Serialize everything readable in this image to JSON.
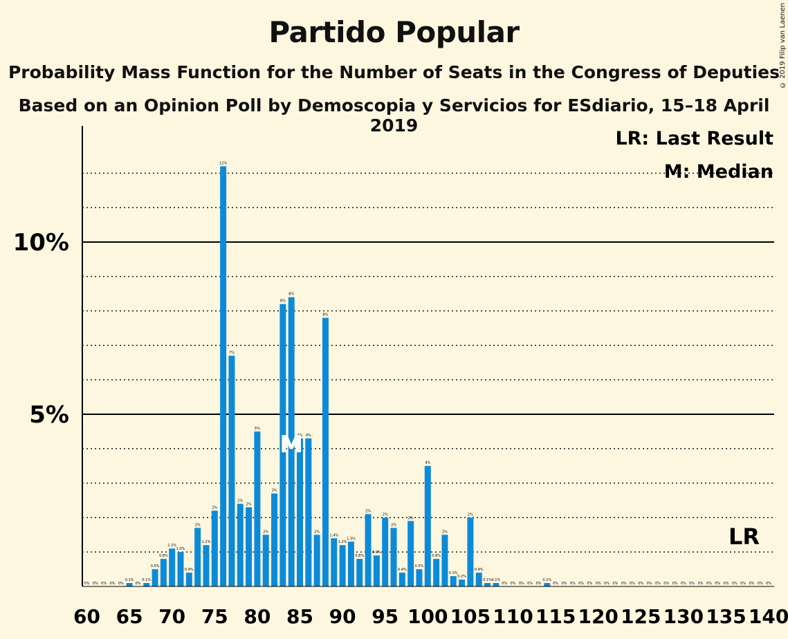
{
  "title": "Partido Popular",
  "subtitle": "Probability Mass Function for the Number of Seats in the Congress of Deputies",
  "subtitle2": "Based on an Opinion Poll by Demoscopia y Servicios for ESdiario, 15–18 April 2019",
  "copyright": "© 2019 Filip van Laenen",
  "legend": {
    "lr": "LR: Last Result",
    "m": "M: Median"
  },
  "markers": {
    "median_label": "M",
    "median_seat": 84,
    "lr_label": "LR",
    "lr_value": 1.0
  },
  "colors": {
    "bar": "#0c8ad8",
    "background": "#fef7e0"
  },
  "chart_data": {
    "type": "bar",
    "title": "Partido Popular",
    "xlabel": "",
    "ylabel": "",
    "xlim": [
      60,
      140
    ],
    "ylim": [
      0,
      13.3
    ],
    "yticks": [
      {
        "v": 5,
        "label": "5%"
      },
      {
        "v": 10,
        "label": "10%"
      }
    ],
    "xticks": [
      60,
      65,
      70,
      75,
      80,
      85,
      90,
      95,
      100,
      105,
      110,
      115,
      120,
      125,
      130,
      135,
      140
    ],
    "grid": "dotted every 1%, solid at 5% and 10%",
    "x": [
      60,
      61,
      62,
      63,
      64,
      65,
      66,
      67,
      68,
      69,
      70,
      71,
      72,
      73,
      74,
      75,
      76,
      77,
      78,
      79,
      80,
      81,
      82,
      83,
      84,
      85,
      86,
      87,
      88,
      89,
      90,
      91,
      92,
      93,
      94,
      95,
      96,
      97,
      98,
      99,
      100,
      101,
      102,
      103,
      104,
      105,
      106,
      107,
      108,
      109,
      110,
      111,
      112,
      113,
      114,
      115,
      116,
      117,
      118,
      119,
      120,
      121,
      122,
      123,
      124,
      125,
      126,
      127,
      128,
      129,
      130,
      131,
      132,
      133,
      134,
      135,
      136,
      137,
      138,
      139,
      140
    ],
    "values": [
      0,
      0,
      0,
      0,
      0,
      0.1,
      0,
      0.1,
      0.5,
      0.8,
      1.1,
      1.0,
      0.4,
      1.7,
      1.2,
      2.2,
      12.2,
      6.7,
      2.4,
      2.3,
      4.5,
      1.5,
      2.7,
      8.2,
      8.4,
      4.3,
      4.3,
      1.5,
      7.8,
      1.4,
      1.2,
      1.3,
      0.8,
      2.1,
      0.9,
      2.0,
      1.7,
      0.4,
      1.9,
      0.5,
      3.5,
      0.8,
      1.5,
      0.3,
      0.2,
      2.0,
      0.4,
      0.1,
      0.1,
      0,
      0,
      0,
      0,
      0,
      0.1,
      0,
      0,
      0,
      0,
      0,
      0,
      0,
      0,
      0,
      0,
      0,
      0,
      0,
      0,
      0,
      0,
      0,
      0,
      0,
      0,
      0,
      0,
      0,
      0,
      0,
      0
    ],
    "labels": [
      "0%",
      "0%",
      "0%",
      "0%",
      "0%",
      "0.1%",
      "0%",
      "0.1%",
      "0.5%",
      "0.8%",
      "1.1%",
      "1.0%",
      "0.4%",
      "2%",
      "1.2%",
      "2%",
      "12%",
      "7%",
      "2%",
      "2%",
      "5%",
      "2%",
      "3%",
      "8%",
      "8%",
      "4%",
      "4%",
      "2%",
      "8%",
      "1.4%",
      "1.2%",
      "1.3%",
      "0.8%",
      "2%",
      "0.9%",
      "2%",
      "2%",
      "0.4%",
      "2%",
      "0.5%",
      "4%",
      "0.8%",
      "2%",
      "0.3%",
      "0.2%",
      "2%",
      "0.4%",
      "0.1%",
      "0.1%",
      "0%",
      "0%",
      "0%",
      "0%",
      "0%",
      "0.1%",
      "0%",
      "0%",
      "0%",
      "0%",
      "0%",
      "0%",
      "0%",
      "0%",
      "0%",
      "0%",
      "0%",
      "0%",
      "0%",
      "0%",
      "0%",
      "0%",
      "0%",
      "0%",
      "0%",
      "0%",
      "0%",
      "0%",
      "0%",
      "0%",
      "0%",
      "0%"
    ]
  }
}
